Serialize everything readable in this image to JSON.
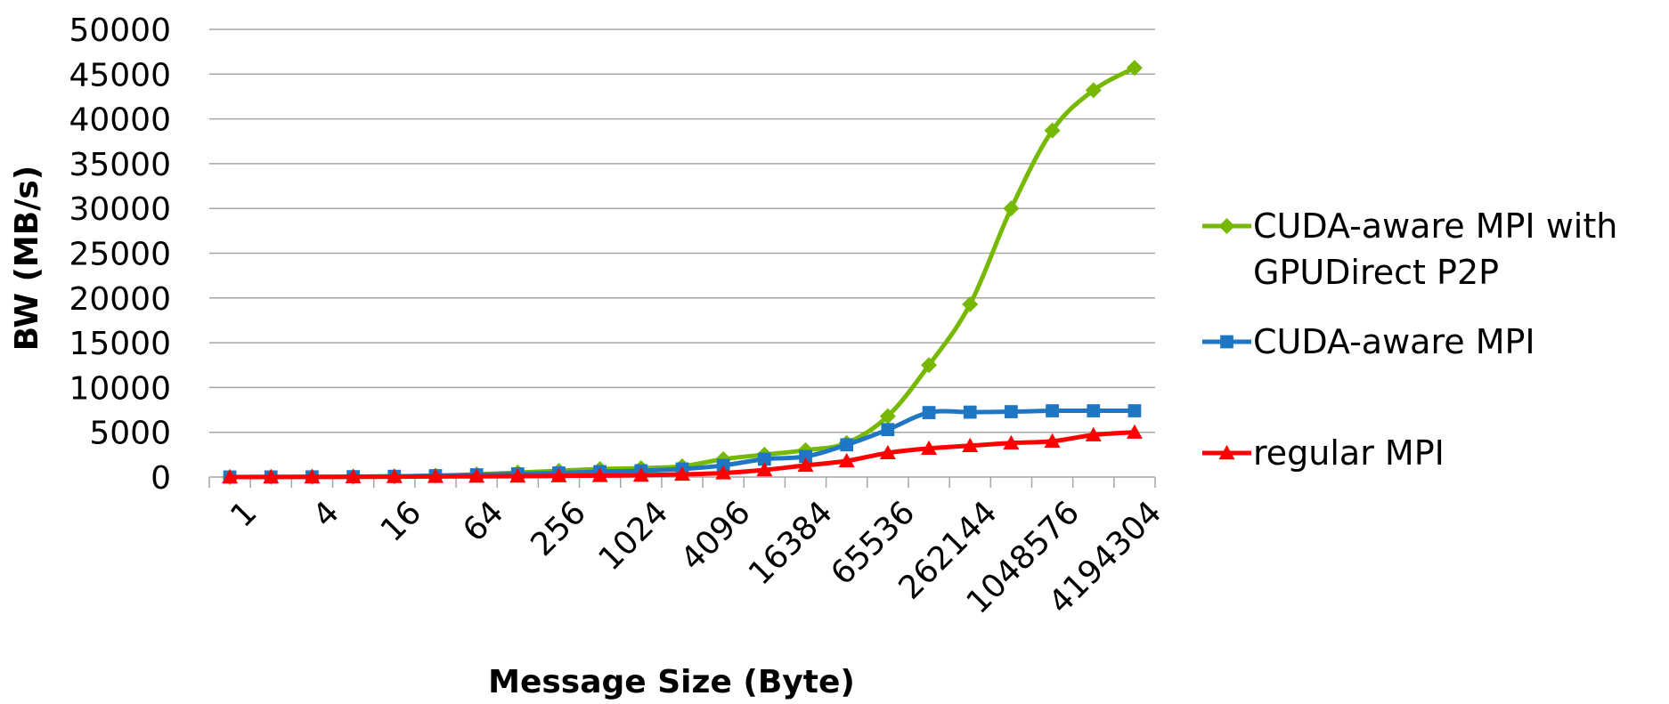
{
  "chart_data": {
    "type": "line",
    "xlabel": "Message Size (Byte)",
    "ylabel": "BW (MB/s)",
    "ylim": [
      0,
      50000
    ],
    "yticks": [
      0,
      5000,
      10000,
      15000,
      20000,
      25000,
      30000,
      35000,
      40000,
      45000,
      50000
    ],
    "categories": [
      "1",
      "2",
      "4",
      "8",
      "16",
      "32",
      "64",
      "128",
      "256",
      "512",
      "1024",
      "2048",
      "4096",
      "8192",
      "16384",
      "32768",
      "65536",
      "131072",
      "262144",
      "524288",
      "1048576",
      "2097152",
      "4194304"
    ],
    "x_tick_labels": [
      "1",
      "4",
      "16",
      "64",
      "256",
      "1024",
      "4096",
      "16384",
      "65536",
      "262144",
      "1048576",
      "4194304"
    ],
    "grid": true,
    "legend_position": "right",
    "series": [
      {
        "name": "CUDA-aware MPI with GPUDirect P2P",
        "legend_lines": [
          "CUDA-aware MPI with",
          "GPUDirect P2P"
        ],
        "color": "#76b900",
        "marker": "diamond",
        "values": [
          5,
          10,
          20,
          40,
          80,
          150,
          300,
          500,
          700,
          900,
          1000,
          1200,
          2000,
          2500,
          3000,
          3800,
          6800,
          12500,
          19300,
          30000,
          38700,
          43200,
          45700
        ]
      },
      {
        "name": "CUDA-aware MPI",
        "color": "#1f77c4",
        "marker": "square",
        "values": [
          5,
          10,
          20,
          40,
          80,
          150,
          250,
          350,
          450,
          600,
          700,
          900,
          1300,
          2000,
          2300,
          3600,
          5300,
          7200,
          7250,
          7300,
          7400,
          7400,
          7400
        ]
      },
      {
        "name": "regular MPI",
        "color": "#ff0000",
        "marker": "triangle",
        "values": [
          2,
          5,
          10,
          20,
          40,
          60,
          80,
          100,
          130,
          160,
          200,
          300,
          450,
          800,
          1300,
          1800,
          2700,
          3200,
          3500,
          3800,
          4000,
          4700,
          5000
        ]
      }
    ]
  }
}
